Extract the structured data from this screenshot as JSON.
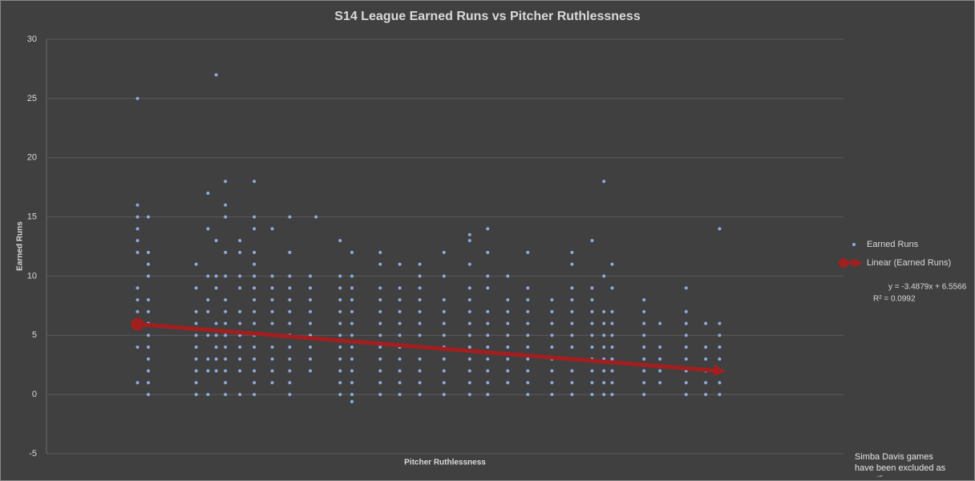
{
  "chart_data": {
    "type": "scatter",
    "title": "S14 League Earned Runs vs Pitcher Ruthlessness",
    "x_label": "Pitcher Ruthlessness",
    "y_label": "Earned Runs",
    "xlim": [
      0,
      1.55
    ],
    "ylim": [
      -5,
      30
    ],
    "yticks": [
      -5,
      0,
      5,
      10,
      15,
      20,
      25,
      30
    ],
    "grid": true,
    "legend": "right",
    "annotations": [
      "y = -3.4879x + 6.5566",
      "R² = 0.0992",
      "Simba Davis games have been excluded as an outlier"
    ],
    "series": [
      {
        "name": "Earned Runs",
        "color": "#8faadc",
        "line": false,
        "x": [
          0.177,
          0.177,
          0.177,
          0.177,
          0.177,
          0.177,
          0.177,
          0.177,
          0.177,
          0.177,
          0.177,
          0.177,
          0.198,
          0.198,
          0.198,
          0.198,
          0.198,
          0.198,
          0.198,
          0.198,
          0.198,
          0.198,
          0.198,
          0.198,
          0.198,
          0.291,
          0.291,
          0.291,
          0.291,
          0.291,
          0.291,
          0.291,
          0.291,
          0.291,
          0.291,
          0.314,
          0.314,
          0.314,
          0.314,
          0.314,
          0.314,
          0.314,
          0.314,
          0.314,
          0.33,
          0.33,
          0.33,
          0.33,
          0.33,
          0.33,
          0.33,
          0.33,
          0.33,
          0.348,
          0.348,
          0.348,
          0.348,
          0.348,
          0.348,
          0.348,
          0.348,
          0.348,
          0.348,
          0.348,
          0.348,
          0.348,
          0.348,
          0.376,
          0.376,
          0.376,
          0.376,
          0.376,
          0.376,
          0.376,
          0.376,
          0.376,
          0.376,
          0.376,
          0.404,
          0.404,
          0.404,
          0.404,
          0.404,
          0.404,
          0.404,
          0.404,
          0.404,
          0.404,
          0.404,
          0.404,
          0.404,
          0.404,
          0.404,
          0.404,
          0.439,
          0.439,
          0.439,
          0.439,
          0.439,
          0.439,
          0.439,
          0.439,
          0.439,
          0.439,
          0.439,
          0.473,
          0.473,
          0.473,
          0.473,
          0.473,
          0.473,
          0.473,
          0.473,
          0.473,
          0.473,
          0.473,
          0.473,
          0.473,
          0.513,
          0.513,
          0.513,
          0.513,
          0.513,
          0.513,
          0.513,
          0.513,
          0.513,
          0.524,
          0.571,
          0.571,
          0.571,
          0.571,
          0.571,
          0.571,
          0.571,
          0.571,
          0.571,
          0.571,
          0.571,
          0.571,
          0.594,
          0.594,
          0.594,
          0.594,
          0.594,
          0.594,
          0.594,
          0.594,
          0.594,
          0.594,
          0.594,
          0.594,
          0.594,
          0.649,
          0.649,
          0.649,
          0.649,
          0.649,
          0.649,
          0.649,
          0.649,
          0.649,
          0.649,
          0.649,
          0.649,
          0.687,
          0.687,
          0.687,
          0.687,
          0.687,
          0.687,
          0.687,
          0.687,
          0.687,
          0.687,
          0.687,
          0.726,
          0.726,
          0.726,
          0.726,
          0.726,
          0.726,
          0.726,
          0.726,
          0.726,
          0.726,
          0.726,
          0.726,
          0.773,
          0.773,
          0.773,
          0.773,
          0.773,
          0.773,
          0.773,
          0.773,
          0.773,
          0.773,
          0.773,
          0.823,
          0.823,
          0.823,
          0.823,
          0.823,
          0.823,
          0.823,
          0.823,
          0.823,
          0.823,
          0.823,
          0.823,
          0.823,
          0.858,
          0.858,
          0.858,
          0.858,
          0.858,
          0.858,
          0.858,
          0.858,
          0.858,
          0.858,
          0.858,
          0.858,
          0.897,
          0.897,
          0.897,
          0.897,
          0.897,
          0.897,
          0.897,
          0.897,
          0.897,
          0.936,
          0.936,
          0.936,
          0.936,
          0.936,
          0.936,
          0.936,
          0.936,
          0.936,
          0.936,
          0.936,
          0.983,
          0.983,
          0.983,
          0.983,
          0.983,
          0.983,
          0.983,
          0.983,
          0.983,
          1.022,
          1.022,
          1.022,
          1.022,
          1.022,
          1.022,
          1.022,
          1.022,
          1.022,
          1.022,
          1.022,
          1.022,
          1.061,
          1.061,
          1.061,
          1.061,
          1.061,
          1.061,
          1.061,
          1.061,
          1.061,
          1.061,
          1.061,
          1.084,
          1.084,
          1.084,
          1.084,
          1.084,
          1.084,
          1.084,
          1.084,
          1.084,
          1.084,
          1.1,
          1.1,
          1.1,
          1.1,
          1.1,
          1.1,
          1.1,
          1.1,
          1.1,
          1.1,
          1.162,
          1.162,
          1.162,
          1.162,
          1.162,
          1.162,
          1.162,
          1.162,
          1.162,
          1.193,
          1.193,
          1.193,
          1.193,
          1.193,
          1.244,
          1.244,
          1.244,
          1.244,
          1.244,
          1.244,
          1.244,
          1.244,
          1.244,
          1.282,
          1.282,
          1.282,
          1.282,
          1.282,
          1.282,
          1.309,
          1.309,
          1.309,
          1.309,
          1.309,
          1.309,
          1.309,
          1.309
        ],
        "values": [
          25,
          16,
          15,
          14,
          13,
          12,
          9,
          8,
          7,
          6,
          4,
          1,
          15,
          12,
          11,
          10,
          8,
          7,
          6,
          5,
          4,
          3,
          2,
          1,
          0,
          11,
          9,
          7,
          6,
          5,
          4,
          3,
          2,
          1,
          0,
          17,
          14,
          10,
          8,
          7,
          5,
          3,
          2,
          0,
          27,
          13,
          10,
          9,
          6,
          5,
          4,
          3,
          2,
          18,
          16,
          15,
          12,
          10,
          8,
          7,
          6,
          5,
          4,
          3,
          2,
          1,
          0,
          13,
          12,
          10,
          9,
          7,
          6,
          5,
          4,
          3,
          2,
          0,
          18,
          15,
          14,
          12,
          11,
          10,
          9,
          8,
          7,
          6,
          5,
          4,
          3,
          2,
          1,
          0,
          14,
          10,
          9,
          8,
          7,
          6,
          5,
          4,
          3,
          2,
          1,
          15,
          12,
          10,
          9,
          8,
          7,
          6,
          5,
          4,
          3,
          2,
          1,
          0,
          10,
          9,
          8,
          7,
          6,
          5,
          4,
          3,
          2,
          15,
          13,
          10,
          9,
          8,
          7,
          6,
          5,
          4,
          3,
          2,
          1,
          0,
          12,
          10,
          9,
          8,
          7,
          6,
          5,
          4,
          3,
          2,
          1,
          0,
          -0.6,
          12,
          11,
          9,
          8,
          7,
          6,
          5,
          4,
          3,
          2,
          1,
          0,
          11,
          9,
          8,
          7,
          6,
          5,
          4,
          3,
          2,
          1,
          0,
          11,
          10,
          9,
          8,
          7,
          6,
          5,
          4,
          3,
          2,
          1,
          0,
          12,
          10,
          8,
          7,
          6,
          5,
          4,
          3,
          2,
          1,
          0,
          13.5,
          13,
          11,
          9,
          8,
          7,
          6,
          5,
          4,
          3,
          2,
          1,
          0,
          14,
          12,
          10,
          9,
          7,
          6,
          5,
          4,
          3,
          2,
          1,
          0,
          10,
          8,
          7,
          6,
          5,
          4,
          3,
          2,
          1,
          12,
          9,
          8,
          7,
          6,
          5,
          4,
          3,
          2,
          1,
          0,
          8,
          7,
          6,
          5,
          4,
          3,
          2,
          1,
          0,
          12,
          11,
          9,
          8,
          7,
          6,
          5,
          4,
          3,
          2,
          1,
          0,
          13,
          9,
          8,
          7,
          6,
          5,
          4,
          3,
          2,
          1,
          0,
          18,
          10,
          7,
          6,
          5,
          4,
          3,
          2,
          1,
          0,
          11,
          9,
          7,
          6,
          5,
          4,
          3,
          2,
          1,
          0,
          8,
          7,
          6,
          5,
          4,
          3,
          2,
          1,
          0,
          6,
          4,
          3,
          2,
          1,
          9,
          7,
          6,
          5,
          4,
          3,
          2,
          1,
          0,
          6,
          4,
          3,
          2,
          1,
          0,
          14,
          6,
          5,
          4,
          3,
          2,
          1,
          0
        ]
      },
      {
        "name": "Linear (Earned Runs)",
        "color": "#a31f1f",
        "line": true,
        "x": [
          0.177,
          1.309
        ],
        "values": [
          5.939,
          1.991
        ]
      }
    ]
  }
}
